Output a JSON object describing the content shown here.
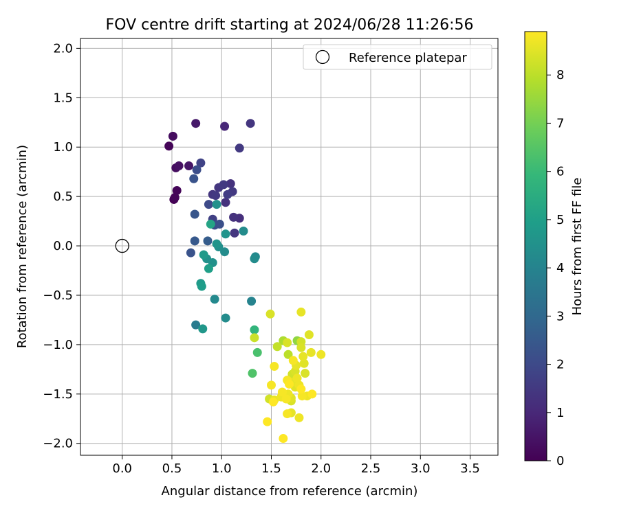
{
  "chart_data": {
    "type": "scatter",
    "title": "FOV centre drift starting at 2024/06/28 11:26:56",
    "xlabel": "Angular distance from reference (arcmin)",
    "ylabel": "Rotation from reference (arcmin)",
    "xlim": [
      -0.42,
      3.78
    ],
    "ylim": [
      -2.12,
      2.1
    ],
    "xticks": [
      0.0,
      0.5,
      1.0,
      1.5,
      2.0,
      2.5,
      3.0,
      3.5
    ],
    "xtick_labels": [
      "0.0",
      "0.5",
      "1.0",
      "1.5",
      "2.0",
      "2.5",
      "3.0",
      "3.5"
    ],
    "yticks": [
      2.0,
      1.5,
      1.0,
      0.5,
      0.0,
      -0.5,
      -1.0,
      -1.5,
      -2.0
    ],
    "ytick_labels": [
      "2.0",
      "1.5",
      "1.0",
      "0.5",
      "0.0",
      "−0.5",
      "−1.0",
      "−1.5",
      "−2.0"
    ],
    "grid": true,
    "legend": {
      "position": "top-right",
      "entries": [
        "Reference platepar"
      ]
    },
    "reference_point": {
      "x": 0.0,
      "y": 0.0,
      "label": "Reference platepar"
    },
    "colorbar": {
      "label": "Hours from first FF file",
      "min": 0,
      "max": 8.9,
      "ticks": [
        0,
        1,
        2,
        3,
        4,
        5,
        6,
        7,
        8
      ],
      "colormap": "viridis"
    },
    "points": [
      {
        "x": 0.47,
        "y": 1.01,
        "h": 0.1
      },
      {
        "x": 0.51,
        "y": 1.11,
        "h": 0.3
      },
      {
        "x": 0.54,
        "y": 0.79,
        "h": 0.3
      },
      {
        "x": 0.57,
        "y": 0.81,
        "h": 0.4
      },
      {
        "x": 0.67,
        "y": 0.81,
        "h": 0.5
      },
      {
        "x": 0.74,
        "y": 1.24,
        "h": 0.6
      },
      {
        "x": 0.55,
        "y": 0.56,
        "h": 0.1
      },
      {
        "x": 0.52,
        "y": 0.47,
        "h": 0.0
      },
      {
        "x": 0.53,
        "y": 0.49,
        "h": 0.1
      },
      {
        "x": 1.03,
        "y": 1.21,
        "h": 1.0
      },
      {
        "x": 1.29,
        "y": 1.24,
        "h": 1.4
      },
      {
        "x": 1.18,
        "y": 0.99,
        "h": 1.5
      },
      {
        "x": 0.79,
        "y": 0.84,
        "h": 1.8
      },
      {
        "x": 0.75,
        "y": 0.77,
        "h": 2.1
      },
      {
        "x": 0.72,
        "y": 0.68,
        "h": 2.3
      },
      {
        "x": 0.97,
        "y": 0.59,
        "h": 1.4
      },
      {
        "x": 1.02,
        "y": 0.62,
        "h": 1.5
      },
      {
        "x": 1.09,
        "y": 0.63,
        "h": 1.3
      },
      {
        "x": 1.11,
        "y": 0.55,
        "h": 1.5
      },
      {
        "x": 1.06,
        "y": 0.52,
        "h": 1.6
      },
      {
        "x": 0.91,
        "y": 0.52,
        "h": 1.4
      },
      {
        "x": 0.94,
        "y": 0.51,
        "h": 1.5
      },
      {
        "x": 1.04,
        "y": 0.44,
        "h": 1.3
      },
      {
        "x": 0.87,
        "y": 0.42,
        "h": 2.0
      },
      {
        "x": 0.73,
        "y": 0.32,
        "h": 2.4
      },
      {
        "x": 1.12,
        "y": 0.29,
        "h": 1.3
      },
      {
        "x": 1.18,
        "y": 0.28,
        "h": 1.2
      },
      {
        "x": 0.91,
        "y": 0.27,
        "h": 1.7
      },
      {
        "x": 0.93,
        "y": 0.21,
        "h": 2.1
      },
      {
        "x": 0.98,
        "y": 0.22,
        "h": 2.2
      },
      {
        "x": 1.13,
        "y": 0.13,
        "h": 1.4
      },
      {
        "x": 0.73,
        "y": 0.05,
        "h": 2.5
      },
      {
        "x": 0.86,
        "y": 0.05,
        "h": 2.6
      },
      {
        "x": 0.69,
        "y": -0.07,
        "h": 2.3
      },
      {
        "x": 0.95,
        "y": 0.42,
        "h": 4.5
      },
      {
        "x": 0.89,
        "y": 0.22,
        "h": 5.2
      },
      {
        "x": 1.22,
        "y": 0.15,
        "h": 4.3
      },
      {
        "x": 1.04,
        "y": 0.12,
        "h": 4.6
      },
      {
        "x": 0.95,
        "y": 0.02,
        "h": 4.6
      },
      {
        "x": 0.97,
        "y": -0.01,
        "h": 4.4
      },
      {
        "x": 1.03,
        "y": -0.06,
        "h": 4.3
      },
      {
        "x": 0.82,
        "y": -0.09,
        "h": 4.8
      },
      {
        "x": 0.85,
        "y": -0.13,
        "h": 4.5
      },
      {
        "x": 0.91,
        "y": -0.17,
        "h": 4.5
      },
      {
        "x": 0.87,
        "y": -0.23,
        "h": 5.0
      },
      {
        "x": 1.34,
        "y": -0.11,
        "h": 4.2
      },
      {
        "x": 1.33,
        "y": -0.13,
        "h": 4.3
      },
      {
        "x": 0.79,
        "y": -0.38,
        "h": 4.8
      },
      {
        "x": 0.8,
        "y": -0.41,
        "h": 4.9
      },
      {
        "x": 0.93,
        "y": -0.54,
        "h": 4.2
      },
      {
        "x": 1.3,
        "y": -0.56,
        "h": 4.0
      },
      {
        "x": 1.04,
        "y": -0.73,
        "h": 4.3
      },
      {
        "x": 0.74,
        "y": -0.8,
        "h": 3.7
      },
      {
        "x": 0.81,
        "y": -0.84,
        "h": 4.7
      },
      {
        "x": 1.33,
        "y": -0.85,
        "h": 5.8
      },
      {
        "x": 1.49,
        "y": -0.69,
        "h": 8.4
      },
      {
        "x": 1.8,
        "y": -0.67,
        "h": 8.6
      },
      {
        "x": 1.33,
        "y": -0.93,
        "h": 8.2
      },
      {
        "x": 1.62,
        "y": -0.96,
        "h": 7.8
      },
      {
        "x": 1.76,
        "y": -0.96,
        "h": 7.4
      },
      {
        "x": 1.8,
        "y": -0.97,
        "h": 8.3
      },
      {
        "x": 1.66,
        "y": -0.98,
        "h": 8.4
      },
      {
        "x": 1.88,
        "y": -0.9,
        "h": 8.5
      },
      {
        "x": 1.56,
        "y": -1.02,
        "h": 8.1
      },
      {
        "x": 1.8,
        "y": -1.03,
        "h": 8.4
      },
      {
        "x": 1.36,
        "y": -1.08,
        "h": 6.3
      },
      {
        "x": 1.67,
        "y": -1.1,
        "h": 8.0
      },
      {
        "x": 1.82,
        "y": -1.12,
        "h": 8.6
      },
      {
        "x": 1.9,
        "y": -1.08,
        "h": 8.6
      },
      {
        "x": 2.0,
        "y": -1.1,
        "h": 8.7
      },
      {
        "x": 1.53,
        "y": -1.22,
        "h": 8.8
      },
      {
        "x": 1.72,
        "y": -1.16,
        "h": 8.8
      },
      {
        "x": 1.83,
        "y": -1.19,
        "h": 8.5
      },
      {
        "x": 1.75,
        "y": -1.21,
        "h": 8.6
      },
      {
        "x": 1.74,
        "y": -1.27,
        "h": 8.4
      },
      {
        "x": 1.31,
        "y": -1.29,
        "h": 6.4
      },
      {
        "x": 1.71,
        "y": -1.3,
        "h": 8.3
      },
      {
        "x": 1.84,
        "y": -1.29,
        "h": 8.4
      },
      {
        "x": 1.76,
        "y": -1.34,
        "h": 8.7
      },
      {
        "x": 1.66,
        "y": -1.36,
        "h": 8.8
      },
      {
        "x": 1.71,
        "y": -1.38,
        "h": 8.6
      },
      {
        "x": 1.68,
        "y": -1.4,
        "h": 8.9
      },
      {
        "x": 1.5,
        "y": -1.41,
        "h": 8.8
      },
      {
        "x": 1.78,
        "y": -1.41,
        "h": 8.7
      },
      {
        "x": 1.74,
        "y": -1.43,
        "h": 8.5
      },
      {
        "x": 1.8,
        "y": -1.45,
        "h": 8.9
      },
      {
        "x": 1.61,
        "y": -1.48,
        "h": 8.8
      },
      {
        "x": 1.67,
        "y": -1.5,
        "h": 8.7
      },
      {
        "x": 1.91,
        "y": -1.5,
        "h": 8.9
      },
      {
        "x": 1.81,
        "y": -1.52,
        "h": 8.8
      },
      {
        "x": 1.86,
        "y": -1.52,
        "h": 8.7
      },
      {
        "x": 1.7,
        "y": -1.54,
        "h": 8.5
      },
      {
        "x": 1.48,
        "y": -1.55,
        "h": 8.3
      },
      {
        "x": 1.53,
        "y": -1.56,
        "h": 8.6
      },
      {
        "x": 1.7,
        "y": -1.57,
        "h": 8.4
      },
      {
        "x": 1.65,
        "y": -1.55,
        "h": 8.8
      },
      {
        "x": 1.6,
        "y": -1.53,
        "h": 8.7
      },
      {
        "x": 1.52,
        "y": -1.58,
        "h": 8.9
      },
      {
        "x": 1.66,
        "y": -1.7,
        "h": 8.8
      },
      {
        "x": 1.7,
        "y": -1.69,
        "h": 8.6
      },
      {
        "x": 1.78,
        "y": -1.74,
        "h": 8.7
      },
      {
        "x": 1.46,
        "y": -1.78,
        "h": 8.9
      },
      {
        "x": 1.62,
        "y": -1.95,
        "h": 8.9
      }
    ]
  }
}
